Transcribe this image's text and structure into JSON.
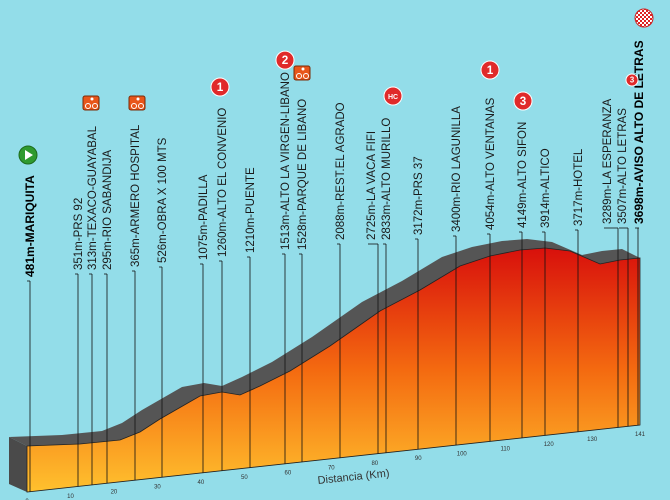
{
  "chart_data": {
    "type": "area",
    "title": "",
    "xlabel": "Distancia (Km)",
    "ylabel": "",
    "x_ticks": [
      "0",
      "10",
      "20",
      "30",
      "40",
      "50",
      "60",
      "70",
      "80",
      "90",
      "100",
      "110",
      "120",
      "130",
      "141"
    ],
    "xlim": [
      0,
      141
    ],
    "grid": false,
    "colors": {
      "background": "#93dde9",
      "profile_top": "#d8100c",
      "profile_bottom": "#ffc12e",
      "surface": "#555555",
      "kom": "#e02a2a",
      "start": "#2f9a2f",
      "sprint": "#e8561a"
    },
    "points": [
      {
        "label": "481m-MARIQUITA",
        "altitude_m": 481,
        "bold": true,
        "icon": "start"
      },
      {
        "label": "351m-PRS 92",
        "altitude_m": 351
      },
      {
        "label": "313m-TEXACO-GUAYABAL",
        "altitude_m": 313,
        "icon": "sprint"
      },
      {
        "label": "295m-RIO SABANDIJA",
        "altitude_m": 295
      },
      {
        "label": "365m-ARMERO HOSPITAL",
        "altitude_m": 365,
        "icon": "sprint"
      },
      {
        "label": "526m-OBRA X 100 MTS",
        "altitude_m": 526
      },
      {
        "label": "1075m-PADILLA",
        "altitude_m": 1075
      },
      {
        "label": "1260m-ALTO EL CONVENIO",
        "altitude_m": 1260,
        "icon": "kom",
        "kom": "1"
      },
      {
        "label": "1210m-PUENTE",
        "altitude_m": 1210
      },
      {
        "label": "1513m-ALTO LA VIRGEN-LIBANO",
        "altitude_m": 1513,
        "icon": "kom",
        "kom": "2"
      },
      {
        "label": "1528m-PARQUE DE LIBANO",
        "altitude_m": 1528,
        "icon": "sprint"
      },
      {
        "label": "2088m-REST.EL AGRADO",
        "altitude_m": 2088
      },
      {
        "label": "2725m-LA VACA FIFI",
        "altitude_m": 2725
      },
      {
        "label": "2833m-ALTO MURILLO",
        "altitude_m": 2833,
        "icon": "kom",
        "kom": "HC"
      },
      {
        "label": "3172m-PRS 37",
        "altitude_m": 3172
      },
      {
        "label": "3400m-RIO LAGUNILLA",
        "altitude_m": 3400
      },
      {
        "label": "4054m-ALTO VENTANAS",
        "altitude_m": 4054,
        "icon": "kom",
        "kom": "1"
      },
      {
        "label": "4149m-ALTO SIFON",
        "altitude_m": 4149,
        "icon": "kom",
        "kom": "3"
      },
      {
        "label": "3914m-ALTICO",
        "altitude_m": 3914
      },
      {
        "label": "3717m-HOTEL",
        "altitude_m": 3717
      },
      {
        "label": "3289m-LA ESPERANZA",
        "altitude_m": 3289
      },
      {
        "label": "3507m-ALTO LETRAS",
        "altitude_m": 3507,
        "icon": "kom",
        "kom": "3"
      },
      {
        "label": "3698m-AVISO ALTO DE LETRAS",
        "altitude_m": 3698,
        "bold": true,
        "icon": "finish"
      }
    ]
  }
}
